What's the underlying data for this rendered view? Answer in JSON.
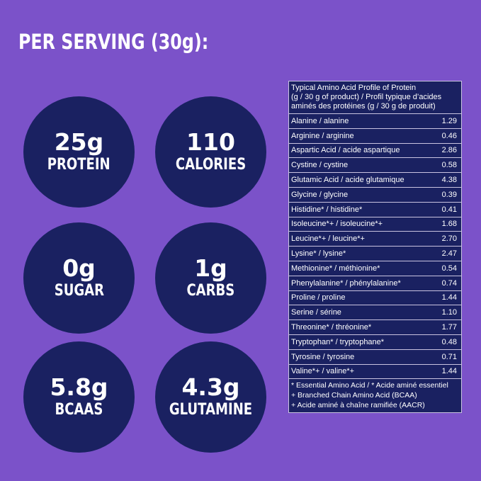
{
  "heading": "PER SERVING (30g):",
  "stats": [
    {
      "value": "25g",
      "label": "PROTEIN"
    },
    {
      "value": "110",
      "label": "CALORIES"
    },
    {
      "value": "0g",
      "label": "SUGAR"
    },
    {
      "value": "1g",
      "label": "CARBS"
    },
    {
      "value": "5.8g",
      "label": "BCAAS"
    },
    {
      "value": "4.3g",
      "label": "GLUTAMINE"
    }
  ],
  "amino_table": {
    "header_line1": "Typical Amino Acid Profile of Protein",
    "header_line2": "(g / 30 g of product) / Profil typique d’acides",
    "header_line3": "aminés des protéines (g / 30 g de produit)",
    "rows": [
      {
        "name": "Alanine / alanine",
        "value": "1.29"
      },
      {
        "name": "Arginine / arginine",
        "value": "0.46"
      },
      {
        "name": "Aspartic Acid / acide aspartique",
        "value": "2.86"
      },
      {
        "name": "Cystine / cystine",
        "value": "0.58"
      },
      {
        "name": "Glutamic Acid / acide glutamique",
        "value": "4.38"
      },
      {
        "name": "Glycine / glycine",
        "value": "0.39"
      },
      {
        "name": "Histidine* / histidine*",
        "value": "0.41"
      },
      {
        "name": "Isoleucine*+ / isoleucine*+",
        "value": "1.68"
      },
      {
        "name": "Leucine*+ / leucine*+",
        "value": "2.70"
      },
      {
        "name": "Lysine* / lysine*",
        "value": "2.47"
      },
      {
        "name": "Methionine* / méthionine*",
        "value": "0.54"
      },
      {
        "name": "Phenylalanine* / phénylalanine*",
        "value": "0.74"
      },
      {
        "name": "Proline / proline",
        "value": "1.44"
      },
      {
        "name": "Serine / sérine",
        "value": "1.10"
      },
      {
        "name": "Threonine* / thréonine*",
        "value": "1.77"
      },
      {
        "name": "Tryptophan* / tryptophane*",
        "value": "0.48"
      },
      {
        "name": "Tyrosine / tyrosine",
        "value": "0.71"
      },
      {
        "name": "Valine*+ / valine*+",
        "value": "1.44"
      }
    ],
    "note1": "* Essential Amino Acid / * Acide aminé essentiel",
    "note2": "+ Branched Chain Amino Acid (BCAA)",
    "note3": "+ Acide aminé à chaîne ramifiée (AACR)"
  }
}
